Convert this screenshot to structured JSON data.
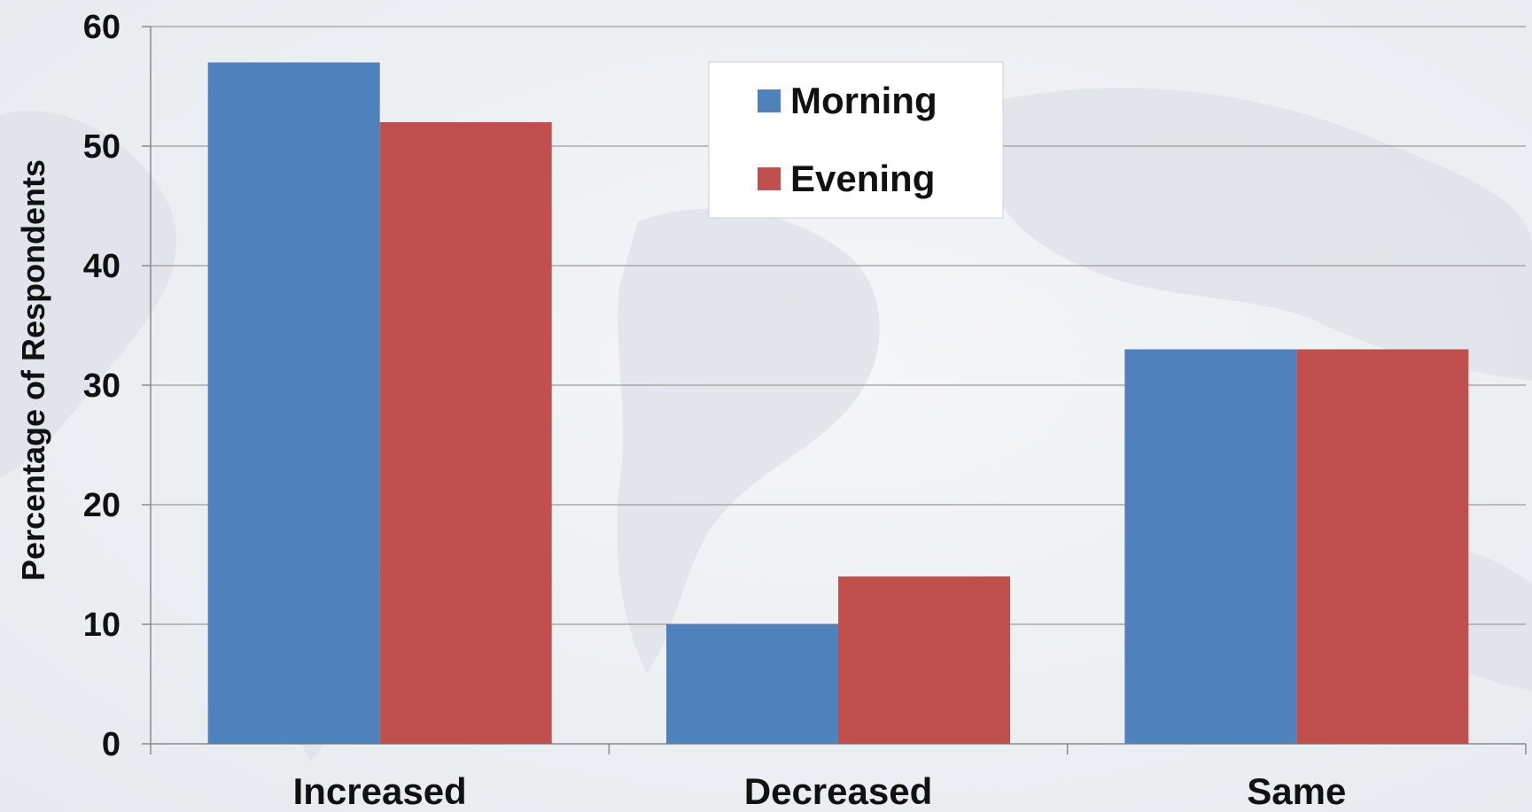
{
  "chart_data": {
    "type": "bar",
    "title": "",
    "xlabel": "",
    "ylabel": "Percentage of Respondents",
    "categories": [
      "Increased",
      "Decreased",
      "Same"
    ],
    "series": [
      {
        "name": "Morning",
        "color": "#4f81bd",
        "values": [
          57,
          10,
          33
        ]
      },
      {
        "name": "Evening",
        "color": "#c0504d",
        "values": [
          52,
          14,
          33
        ]
      }
    ],
    "ylim": [
      0,
      60
    ],
    "yticks": [
      0,
      10,
      20,
      30,
      40,
      50,
      60
    ],
    "grid": true,
    "legend": "top-center"
  }
}
